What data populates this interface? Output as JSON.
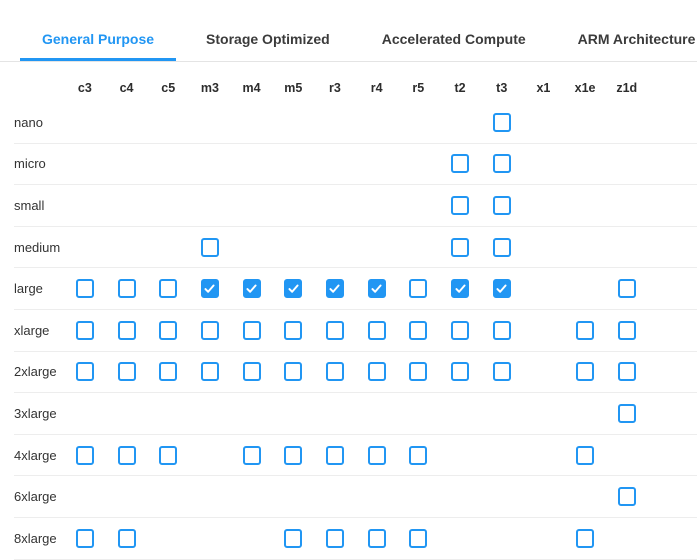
{
  "colors": {
    "accent": "#2196f3",
    "tab_inactive_text": "#3b3b3b",
    "row_divider": "#ededed",
    "label_text": "#333333"
  },
  "tabs": [
    {
      "label": "General Purpose",
      "active": true
    },
    {
      "label": "Storage Optimized",
      "active": false
    },
    {
      "label": "Accelerated Compute",
      "active": false
    },
    {
      "label": "ARM Architecture",
      "active": false
    }
  ],
  "grid": {
    "columns": [
      "c3",
      "c4",
      "c5",
      "m3",
      "m4",
      "m5",
      "r3",
      "r4",
      "r5",
      "t2",
      "t3",
      "x1",
      "x1e",
      "z1d"
    ],
    "rows": [
      {
        "label": "nano",
        "cells": {
          "t3": "unchecked"
        }
      },
      {
        "label": "micro",
        "cells": {
          "t2": "unchecked",
          "t3": "unchecked"
        }
      },
      {
        "label": "small",
        "cells": {
          "t2": "unchecked",
          "t3": "unchecked"
        }
      },
      {
        "label": "medium",
        "cells": {
          "m3": "unchecked",
          "t2": "unchecked",
          "t3": "unchecked"
        }
      },
      {
        "label": "large",
        "cells": {
          "c3": "unchecked",
          "c4": "unchecked",
          "c5": "unchecked",
          "m3": "checked",
          "m4": "checked",
          "m5": "checked",
          "r3": "checked",
          "r4": "checked",
          "r5": "unchecked",
          "t2": "checked",
          "t3": "checked",
          "z1d": "unchecked"
        }
      },
      {
        "label": "xlarge",
        "cells": {
          "c3": "unchecked",
          "c4": "unchecked",
          "c5": "unchecked",
          "m3": "unchecked",
          "m4": "unchecked",
          "m5": "unchecked",
          "r3": "unchecked",
          "r4": "unchecked",
          "r5": "unchecked",
          "t2": "unchecked",
          "t3": "unchecked",
          "x1e": "unchecked",
          "z1d": "unchecked"
        }
      },
      {
        "label": "2xlarge",
        "cells": {
          "c3": "unchecked",
          "c4": "unchecked",
          "c5": "unchecked",
          "m3": "unchecked",
          "m4": "unchecked",
          "m5": "unchecked",
          "r3": "unchecked",
          "r4": "unchecked",
          "r5": "unchecked",
          "t2": "unchecked",
          "t3": "unchecked",
          "x1e": "unchecked",
          "z1d": "unchecked"
        }
      },
      {
        "label": "3xlarge",
        "cells": {
          "z1d": "unchecked"
        }
      },
      {
        "label": "4xlarge",
        "cells": {
          "c3": "unchecked",
          "c4": "unchecked",
          "c5": "unchecked",
          "m4": "unchecked",
          "m5": "unchecked",
          "r3": "unchecked",
          "r4": "unchecked",
          "r5": "unchecked",
          "x1e": "unchecked"
        }
      },
      {
        "label": "6xlarge",
        "cells": {
          "z1d": "unchecked"
        }
      },
      {
        "label": "8xlarge",
        "cells": {
          "c3": "unchecked",
          "c4": "unchecked",
          "m5": "unchecked",
          "r3": "unchecked",
          "r4": "unchecked",
          "r5": "unchecked",
          "x1e": "unchecked"
        }
      }
    ]
  }
}
